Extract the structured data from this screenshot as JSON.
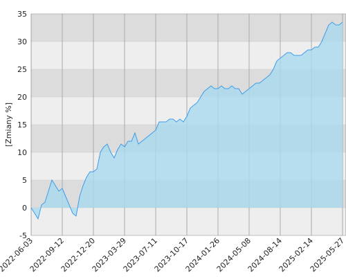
{
  "chart_data": {
    "type": "area",
    "ylabel": "[Zmiany %]",
    "categories": [
      "2022-06-03",
      null,
      null,
      null,
      null,
      null,
      null,
      null,
      null,
      "2022-09-12",
      null,
      null,
      null,
      null,
      null,
      null,
      null,
      null,
      "2022-12-20",
      null,
      null,
      null,
      null,
      null,
      null,
      null,
      null,
      "2023-03-29",
      null,
      null,
      null,
      null,
      null,
      null,
      null,
      null,
      "2023-07-11",
      null,
      null,
      null,
      null,
      null,
      null,
      null,
      null,
      "2023-10-17",
      null,
      null,
      null,
      null,
      null,
      null,
      null,
      null,
      "2024-01-26",
      null,
      null,
      null,
      null,
      null,
      null,
      null,
      null,
      "2024-05-08",
      null,
      null,
      null,
      null,
      null,
      null,
      null,
      null,
      "2024-08-14",
      null,
      null,
      null,
      null,
      null,
      null,
      null,
      null,
      "2025-02-14",
      null,
      null,
      null,
      null,
      null,
      null,
      null,
      null,
      "2025-05-27"
    ],
    "values": [
      0,
      -1,
      -2,
      0.5,
      1,
      3,
      5,
      4,
      3,
      3.5,
      2,
      0.5,
      -1,
      -1.5,
      2,
      4,
      5.5,
      6.5,
      6.5,
      7,
      10,
      11,
      11.5,
      10,
      9,
      10.5,
      11.5,
      11,
      12,
      12,
      13.5,
      11.5,
      12,
      12.5,
      13,
      13.5,
      14,
      15.5,
      15.5,
      15.5,
      16,
      16,
      15.5,
      16,
      15.5,
      16.5,
      18,
      18.5,
      19,
      20,
      21,
      21.5,
      22,
      21.5,
      21.5,
      22,
      21.5,
      21.5,
      22,
      21.5,
      21.5,
      20.5,
      21,
      21.5,
      22,
      22.5,
      22.5,
      23,
      23.5,
      24,
      25,
      26.5,
      27,
      27.5,
      28,
      28,
      27.5,
      27.5,
      27.5,
      28,
      28.5,
      28.5,
      29,
      29,
      30,
      31.5,
      33,
      33.5,
      33,
      33,
      33.5
    ],
    "color": "#3d9be9",
    "fill": "#a9d9ef",
    "ylim": [
      -5,
      35
    ],
    "yticks": [
      -5,
      0,
      5,
      10,
      15,
      20,
      25,
      30,
      35
    ],
    "grid": true
  }
}
